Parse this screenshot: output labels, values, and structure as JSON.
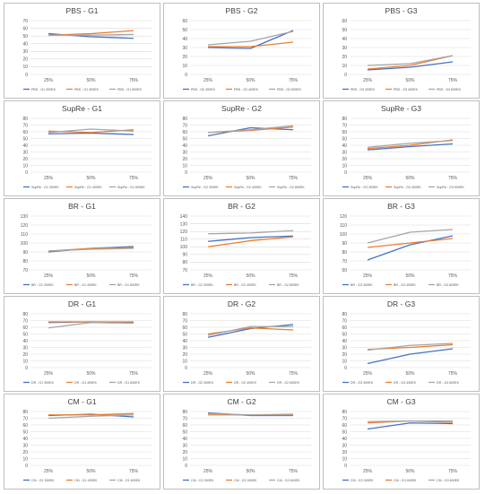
{
  "colors": {
    "g300": "#4472C4",
    "g400": "#ED7D31",
    "g600": "#A5A5A5",
    "grid": "#D9D9D9",
    "frame": "#BFBFBF",
    "text": "#595959",
    "title": "#404040"
  },
  "chart_data": [
    {
      "type": "line",
      "title": "PBS - G1",
      "categories": [
        "25%",
        "50%",
        "75%"
      ],
      "ylim": [
        0,
        70
      ],
      "yticks": [
        0,
        10,
        20,
        30,
        40,
        50,
        60,
        70
      ],
      "series": [
        {
          "name": "PBS - G1 300EK",
          "color": "g300",
          "values": [
            53,
            49,
            47
          ]
        },
        {
          "name": "PBS - G1 400EK",
          "color": "g400",
          "values": [
            51,
            53,
            57
          ]
        },
        {
          "name": "PBS - G1 600EK",
          "color": "g600",
          "values": [
            51,
            51,
            52
          ]
        }
      ]
    },
    {
      "type": "line",
      "title": "PBS - G2",
      "categories": [
        "25%",
        "50%",
        "75%"
      ],
      "ylim": [
        0,
        60
      ],
      "yticks": [
        0,
        10,
        20,
        30,
        40,
        50,
        60
      ],
      "series": [
        {
          "name": "PBS - G2 300EK",
          "color": "g300",
          "values": [
            30,
            29,
            49
          ]
        },
        {
          "name": "PBS - G2 400EK",
          "color": "g400",
          "values": [
            31,
            31,
            36
          ]
        },
        {
          "name": "PBS - G2 600EK",
          "color": "g600",
          "values": [
            33,
            37,
            48
          ]
        }
      ]
    },
    {
      "type": "line",
      "title": "PBS - G3",
      "categories": [
        "25%",
        "50%",
        "75%"
      ],
      "ylim": [
        0,
        60
      ],
      "yticks": [
        0,
        10,
        20,
        30,
        40,
        50,
        60
      ],
      "series": [
        {
          "name": "PBS - G3 300EK",
          "color": "g300",
          "values": [
            5,
            8,
            14
          ]
        },
        {
          "name": "PBS - G3 400EK",
          "color": "g400",
          "values": [
            6,
            10,
            21
          ]
        },
        {
          "name": "PBS - G3 600EK",
          "color": "g600",
          "values": [
            10,
            12,
            21
          ]
        }
      ]
    },
    {
      "type": "line",
      "title": "SupRe - G1",
      "categories": [
        "25%",
        "50%",
        "75%"
      ],
      "ylim": [
        0,
        80
      ],
      "yticks": [
        0,
        10,
        20,
        30,
        40,
        50,
        60,
        70,
        80
      ],
      "series": [
        {
          "name": "SupRe - G1 300EK",
          "color": "g300",
          "values": [
            57,
            58,
            56
          ]
        },
        {
          "name": "SupRe - G1 400EK",
          "color": "g400",
          "values": [
            61,
            59,
            63
          ]
        },
        {
          "name": "SupRe - G1 600EK",
          "color": "g600",
          "values": [
            59,
            64,
            61
          ]
        }
      ]
    },
    {
      "type": "line",
      "title": "SupRe - G2",
      "categories": [
        "25%",
        "50%",
        "75%"
      ],
      "ylim": [
        0,
        80
      ],
      "yticks": [
        0,
        10,
        20,
        30,
        40,
        50,
        60,
        70,
        80
      ],
      "series": [
        {
          "name": "SupRe - G2 300EK",
          "color": "g300",
          "values": [
            54,
            66,
            63
          ]
        },
        {
          "name": "SupRe - G2 400EK",
          "color": "g400",
          "values": [
            59,
            62,
            67
          ]
        },
        {
          "name": "SupRe - G2 600EK",
          "color": "g600",
          "values": [
            59,
            63,
            69
          ]
        }
      ]
    },
    {
      "type": "line",
      "title": "SupRe - G3",
      "categories": [
        "25%",
        "50%",
        "75%"
      ],
      "ylim": [
        0,
        80
      ],
      "yticks": [
        0,
        10,
        20,
        30,
        40,
        50,
        60,
        70,
        80
      ],
      "series": [
        {
          "name": "SupRe - G3 300EK",
          "color": "g300",
          "values": [
            33,
            38,
            42
          ]
        },
        {
          "name": "SupRe - G3 400EK",
          "color": "g400",
          "values": [
            35,
            40,
            48
          ]
        },
        {
          "name": "SupRe - G3 600EK",
          "color": "g600",
          "values": [
            37,
            43,
            47
          ]
        }
      ]
    },
    {
      "type": "line",
      "title": "BR - G1",
      "categories": [
        "25%",
        "50%",
        "75%"
      ],
      "ylim": [
        70,
        130
      ],
      "yticks": [
        70,
        80,
        90,
        100,
        110,
        120,
        130
      ],
      "series": [
        {
          "name": "BR - G1 300EK",
          "color": "g300",
          "values": [
            90,
            94,
            96
          ]
        },
        {
          "name": "BR - G1 400EK",
          "color": "g400",
          "values": [
            91,
            94,
            95
          ]
        },
        {
          "name": "BR - G1 600EK",
          "color": "g600",
          "values": [
            91,
            93,
            94
          ]
        }
      ]
    },
    {
      "type": "line",
      "title": "BR - G2",
      "categories": [
        "25%",
        "50%",
        "75%"
      ],
      "ylim": [
        70,
        140
      ],
      "yticks": [
        70,
        80,
        90,
        100,
        110,
        120,
        130,
        140
      ],
      "series": [
        {
          "name": "BR - G2 300EK",
          "color": "g300",
          "values": [
            107,
            112,
            114
          ]
        },
        {
          "name": "BR - G2 400EK",
          "color": "g400",
          "values": [
            100,
            108,
            113
          ]
        },
        {
          "name": "BR - G2 600EK",
          "color": "g600",
          "values": [
            117,
            118,
            121
          ]
        }
      ]
    },
    {
      "type": "line",
      "title": "BR - G3",
      "categories": [
        "25%",
        "50%",
        "75%"
      ],
      "ylim": [
        60,
        120
      ],
      "yticks": [
        60,
        70,
        80,
        90,
        100,
        110,
        120
      ],
      "series": [
        {
          "name": "BR - G3 300EK",
          "color": "g300",
          "values": [
            71,
            88,
            98
          ]
        },
        {
          "name": "BR - G3 400EK",
          "color": "g400",
          "values": [
            85,
            90,
            95
          ]
        },
        {
          "name": "BR - G3 600EK",
          "color": "g600",
          "values": [
            90,
            102,
            105
          ]
        }
      ]
    },
    {
      "type": "line",
      "title": "DR - G1",
      "categories": [
        "25%",
        "50%",
        "75%"
      ],
      "ylim": [
        0,
        80
      ],
      "yticks": [
        0,
        10,
        20,
        30,
        40,
        50,
        60,
        70,
        80
      ],
      "series": [
        {
          "name": "DR - G1 300EK",
          "color": "g300",
          "values": [
            67,
            68,
            67
          ]
        },
        {
          "name": "DR - G1 400EK",
          "color": "g400",
          "values": [
            68,
            68,
            68
          ]
        },
        {
          "name": "DR - G1 600EK",
          "color": "g600",
          "values": [
            59,
            67,
            66
          ]
        }
      ]
    },
    {
      "type": "line",
      "title": "DR - G2",
      "categories": [
        "25%",
        "50%",
        "75%"
      ],
      "ylim": [
        0,
        80
      ],
      "yticks": [
        0,
        10,
        20,
        30,
        40,
        50,
        60,
        70,
        80
      ],
      "series": [
        {
          "name": "DR - G2 300EK",
          "color": "g300",
          "values": [
            45,
            58,
            64
          ]
        },
        {
          "name": "DR - G2 400EK",
          "color": "g400",
          "values": [
            50,
            59,
            56
          ]
        },
        {
          "name": "DR - G2 600EK",
          "color": "g600",
          "values": [
            48,
            61,
            61
          ]
        }
      ]
    },
    {
      "type": "line",
      "title": "DR - G3",
      "categories": [
        "25%",
        "50%",
        "75%"
      ],
      "ylim": [
        0,
        80
      ],
      "yticks": [
        0,
        10,
        20,
        30,
        40,
        50,
        60,
        70,
        80
      ],
      "series": [
        {
          "name": "DR - G3 300EK",
          "color": "g300",
          "values": [
            6,
            20,
            28
          ]
        },
        {
          "name": "DR - G3 400EK",
          "color": "g400",
          "values": [
            27,
            30,
            34
          ]
        },
        {
          "name": "DR - G3 600EK",
          "color": "g600",
          "values": [
            26,
            33,
            36
          ]
        }
      ]
    },
    {
      "type": "line",
      "title": "CM - G1",
      "categories": [
        "25%",
        "50%",
        "75%"
      ],
      "ylim": [
        0,
        80
      ],
      "yticks": [
        0,
        10,
        20,
        30,
        40,
        50,
        60,
        70,
        80
      ],
      "series": [
        {
          "name": "CM - G1 300EK",
          "color": "g300",
          "values": [
            74,
            76,
            72
          ]
        },
        {
          "name": "CM - G1 400EK",
          "color": "g400",
          "values": [
            75,
            75,
            77
          ]
        },
        {
          "name": "CM - G1 600EK",
          "color": "g600",
          "values": [
            70,
            73,
            75
          ]
        }
      ]
    },
    {
      "type": "line",
      "title": "CM - G2",
      "categories": [
        "25%",
        "50%",
        "75%"
      ],
      "ylim": [
        0,
        80
      ],
      "yticks": [
        0,
        10,
        20,
        30,
        40,
        50,
        60,
        70,
        80
      ],
      "series": [
        {
          "name": "CM - G2 300EK",
          "color": "g300",
          "values": [
            78,
            74,
            74
          ]
        },
        {
          "name": "CM - G2 400EK",
          "color": "g400",
          "values": [
            75,
            75,
            76
          ]
        },
        {
          "name": "CM - G2 600EK",
          "color": "g600",
          "values": [
            77,
            75,
            75
          ]
        }
      ]
    },
    {
      "type": "line",
      "title": "CM - G3",
      "categories": [
        "25%",
        "50%",
        "75%"
      ],
      "ylim": [
        0,
        80
      ],
      "yticks": [
        0,
        10,
        20,
        30,
        40,
        50,
        60,
        70,
        80
      ],
      "series": [
        {
          "name": "CM - G3 300EK",
          "color": "g300",
          "values": [
            54,
            63,
            62
          ]
        },
        {
          "name": "CM - G3 400EK",
          "color": "g400",
          "values": [
            63,
            66,
            64
          ]
        },
        {
          "name": "CM - G3 600EK",
          "color": "g600",
          "values": [
            65,
            66,
            66
          ]
        }
      ]
    }
  ]
}
